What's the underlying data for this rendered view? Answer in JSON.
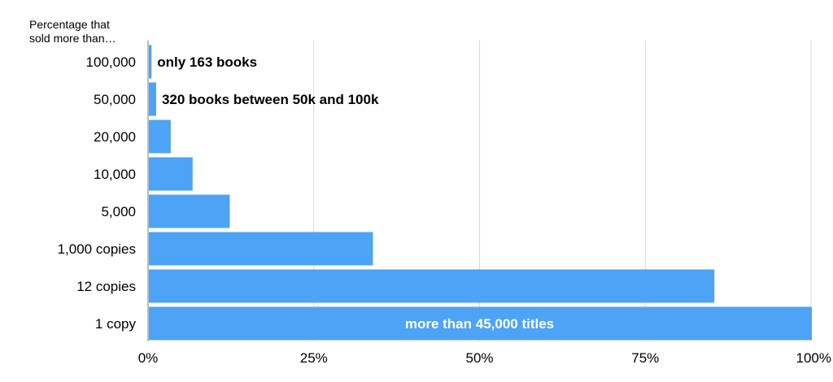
{
  "chart_data": {
    "type": "bar",
    "orientation": "horizontal",
    "y_title_line1": "Percentage that",
    "y_title_line2": "sold more than…",
    "categories": [
      "100,000",
      "50,000",
      "20,000",
      "10,000",
      "5,000",
      "1,000 copies",
      "12 copies",
      "1 copy"
    ],
    "values": [
      0.4,
      1.1,
      3.3,
      6.6,
      12.2,
      33.8,
      85.3,
      100
    ],
    "annotations": [
      {
        "category": "100,000",
        "text": "only 163 books",
        "placement": "outside"
      },
      {
        "category": "50,000",
        "text": "320 books between 50k and 100k",
        "placement": "outside"
      },
      {
        "category": "1 copy",
        "text": "more than 45,000 titles",
        "placement": "inside"
      }
    ],
    "x_ticks": [
      0,
      25,
      50,
      75,
      100
    ],
    "x_tick_labels": [
      "0%",
      "25%",
      "50%",
      "75%",
      "100%"
    ],
    "xlim": [
      0,
      100
    ],
    "grid": "vertical",
    "legend": "none",
    "colors": {
      "bar": "#4da3f5",
      "grid": "#d9d9d9",
      "axis": "#a6a6a6",
      "text": "#000000",
      "inside_label": "#ffffff"
    }
  }
}
